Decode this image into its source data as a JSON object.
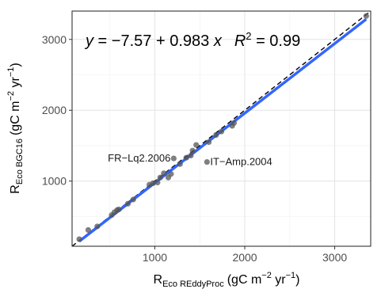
{
  "chart_data": {
    "type": "scatter",
    "xlabel": {
      "main": "R",
      "sub": "Eco REddyProc",
      "unit_prefix": "(gC m",
      "unit_exp1": "−2",
      "unit_mid": " yr",
      "unit_exp2": "−1",
      "unit_suffix": ")"
    },
    "ylabel": {
      "main": "R",
      "sub": "Eco BGC16",
      "unit_prefix": "(gC m",
      "unit_exp1": "−2",
      "unit_mid": " yr",
      "unit_exp2": "−1",
      "unit_suffix": ")"
    },
    "xlim": [
      80,
      3400
    ],
    "ylim": [
      80,
      3400
    ],
    "xticks": [
      1000,
      2000,
      3000
    ],
    "yticks": [
      1000,
      2000,
      3000
    ],
    "grid": true,
    "equation": {
      "y": "y",
      "eq_sign": " = ",
      "intercept": "−7.57",
      "plus": " + ",
      "slope": "0.983",
      "x": " x",
      "r2_label": "R",
      "r2_exp": "2",
      "r2_value": " = 0.99"
    },
    "fit": {
      "intercept": -7.57,
      "slope": 0.983,
      "color": "#3366ff"
    },
    "reference_line": {
      "slope": 1,
      "intercept": 0,
      "style": "dashed",
      "color": "#000000"
    },
    "points_color": "#555555",
    "points": [
      [
        160,
        180
      ],
      [
        260,
        310
      ],
      [
        360,
        360
      ],
      [
        520,
        520
      ],
      [
        550,
        560
      ],
      [
        580,
        590
      ],
      [
        600,
        600
      ],
      [
        700,
        680
      ],
      [
        760,
        740
      ],
      [
        940,
        950
      ],
      [
        980,
        970
      ],
      [
        1030,
        980
      ],
      [
        1060,
        1050
      ],
      [
        1100,
        1110
      ],
      [
        1150,
        1050
      ],
      [
        1180,
        1100
      ],
      [
        1210,
        1320
      ],
      [
        1280,
        1240
      ],
      [
        1350,
        1330
      ],
      [
        1400,
        1360
      ],
      [
        1420,
        1430
      ],
      [
        1460,
        1510
      ],
      [
        1580,
        1270
      ],
      [
        1600,
        1550
      ],
      [
        1680,
        1650
      ],
      [
        1740,
        1700
      ],
      [
        1860,
        1780
      ],
      [
        1880,
        1820
      ],
      [
        3350,
        3330
      ]
    ],
    "annotations": [
      {
        "label": "FR−Lq2.2006",
        "x": 1210,
        "y": 1320,
        "anchor": "end"
      },
      {
        "label": "IT−Amp.2004",
        "x": 1580,
        "y": 1270,
        "anchor": "start"
      }
    ]
  }
}
